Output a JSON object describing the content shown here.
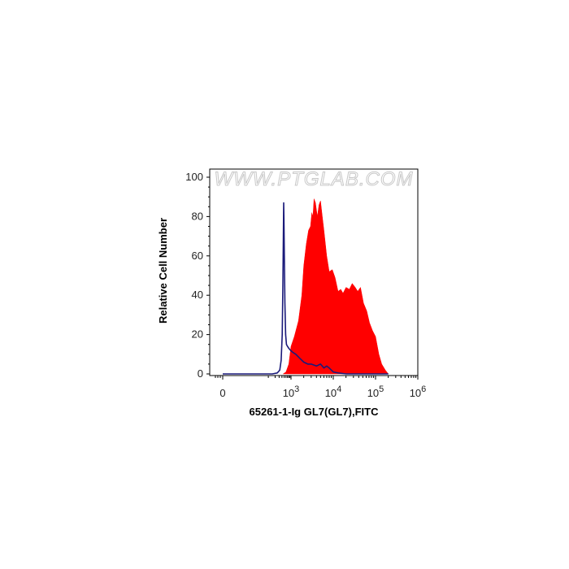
{
  "watermark": "WWW.PTGLAB.COM",
  "chart_data": {
    "type": "area",
    "xlabel": "65261-1-Ig GL7(GL7),FITC",
    "ylabel": "Relative Cell Number",
    "x_scale": "biexponential",
    "ylim": [
      0,
      100
    ],
    "y_ticks": [
      "0",
      "20",
      "40",
      "60",
      "80",
      "100"
    ],
    "x_ticks": [
      {
        "label": "0",
        "sup": ""
      },
      {
        "label": "10",
        "sup": "3"
      },
      {
        "label": "10",
        "sup": "4"
      },
      {
        "label": "10",
        "sup": "5"
      },
      {
        "label": "10",
        "sup": "6"
      }
    ],
    "grid": false,
    "colors": {
      "sample_fill": "#ff0000",
      "control_line": "#1a1a7a"
    },
    "series": [
      {
        "style": "filled",
        "points": [
          [
            450,
            0
          ],
          [
            600,
            1
          ],
          [
            800,
            5
          ],
          [
            1000,
            14
          ],
          [
            1200,
            19
          ],
          [
            1500,
            27
          ],
          [
            1800,
            40
          ],
          [
            2000,
            55
          ],
          [
            2300,
            66
          ],
          [
            2600,
            73
          ],
          [
            2900,
            75
          ],
          [
            3100,
            82
          ],
          [
            3300,
            80
          ],
          [
            3500,
            89
          ],
          [
            3800,
            87
          ],
          [
            4200,
            80
          ],
          [
            4600,
            86
          ],
          [
            5000,
            88
          ],
          [
            5500,
            80
          ],
          [
            6000,
            73
          ],
          [
            7000,
            60
          ],
          [
            8000,
            52
          ],
          [
            9500,
            53
          ],
          [
            11000,
            49
          ],
          [
            13000,
            42
          ],
          [
            15000,
            43
          ],
          [
            17000,
            41
          ],
          [
            20000,
            44
          ],
          [
            24000,
            43
          ],
          [
            28000,
            46
          ],
          [
            33000,
            44
          ],
          [
            38000,
            42
          ],
          [
            44000,
            44
          ],
          [
            52000,
            36
          ],
          [
            62000,
            32
          ],
          [
            72000,
            26
          ],
          [
            85000,
            22
          ],
          [
            100000,
            19
          ],
          [
            120000,
            10
          ],
          [
            140000,
            5
          ],
          [
            170000,
            2
          ],
          [
            200000,
            0
          ]
        ]
      },
      {
        "style": "line",
        "points": [
          [
            0,
            0
          ],
          [
            150,
            0
          ],
          [
            250,
            0.5
          ],
          [
            320,
            2
          ],
          [
            370,
            7
          ],
          [
            410,
            20
          ],
          [
            440,
            45
          ],
          [
            460,
            70
          ],
          [
            475,
            87
          ],
          [
            490,
            79
          ],
          [
            510,
            60
          ],
          [
            540,
            36
          ],
          [
            580,
            20
          ],
          [
            630,
            15
          ],
          [
            700,
            14
          ],
          [
            800,
            13
          ],
          [
            950,
            12
          ],
          [
            1100,
            11
          ],
          [
            1300,
            10
          ],
          [
            1600,
            8
          ],
          [
            2000,
            6
          ],
          [
            2500,
            5
          ],
          [
            3000,
            5
          ],
          [
            4000,
            4
          ],
          [
            5000,
            5
          ],
          [
            6000,
            3
          ],
          [
            7000,
            4
          ],
          [
            8000,
            3
          ],
          [
            10000,
            1
          ],
          [
            13000,
            0.5
          ],
          [
            20000,
            0
          ],
          [
            50000,
            0
          ],
          [
            200000,
            0
          ]
        ]
      }
    ]
  }
}
